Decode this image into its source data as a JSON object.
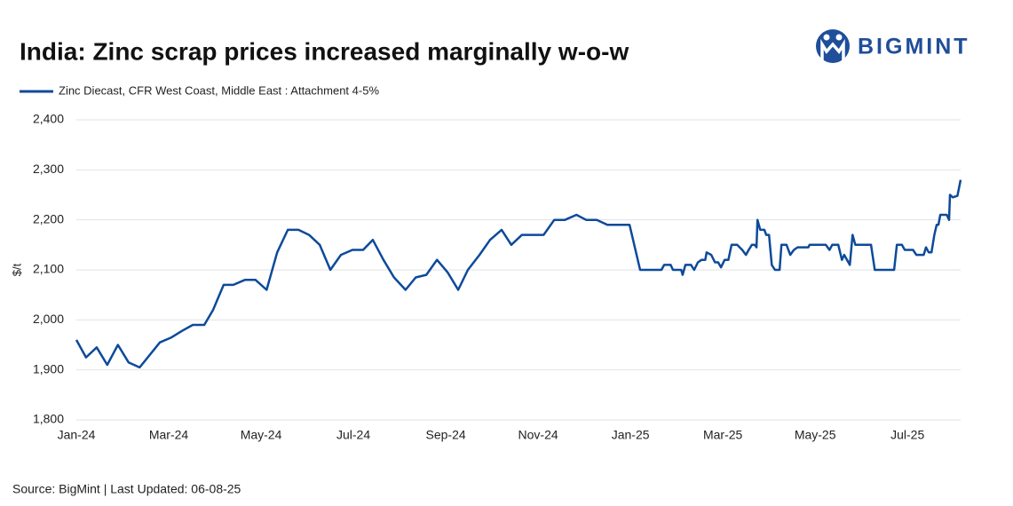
{
  "chart_data": {
    "type": "line",
    "title": "India: Zinc scrap prices increased marginally w-o-w",
    "logo": "BIGMINT",
    "source": "Source: BigMint | Last Updated: 06-08-25",
    "ylabel": "$/t",
    "grid": true,
    "legend": "top-left",
    "x": [
      0,
      0.21,
      0.44,
      0.67,
      0.9,
      1.13,
      1.37,
      1.81,
      2.06,
      2.29,
      2.52,
      2.77,
      2.96,
      3.19,
      3.4,
      3.65,
      3.88,
      4.12,
      4.35,
      4.58,
      4.81,
      5.04,
      5.27,
      5.5,
      5.73,
      5.98,
      6.21,
      6.42,
      6.65,
      6.88,
      7.13,
      7.35,
      7.58,
      7.81,
      8.04,
      8.27,
      8.48,
      8.73,
      8.96,
      9.21,
      9.42,
      9.65,
      10.12,
      10.35,
      10.58,
      10.83,
      11.04,
      11.27,
      11.5,
      11.98,
      12.21,
      12.67,
      12.73,
      12.87,
      12.92,
      13.1,
      13.13,
      13.19,
      13.31,
      13.38,
      13.46,
      13.54,
      13.62,
      13.65,
      13.75,
      13.83,
      13.9,
      13.96,
      14.04,
      14.12,
      14.19,
      14.31,
      14.42,
      14.5,
      14.56,
      14.63,
      14.69,
      14.73,
      14.75,
      14.81,
      14.9,
      14.94,
      15,
      15.06,
      15.13,
      15.23,
      15.27,
      15.38,
      15.46,
      15.54,
      15.62,
      15.85,
      15.88,
      16.23,
      16.31,
      16.37,
      16.5,
      16.58,
      16.63,
      16.75,
      16.81,
      16.87,
      17.21,
      17.29,
      17.71,
      17.77,
      17.88,
      17.94,
      18.12,
      18.19,
      18.35,
      18.4,
      18.46,
      18.52,
      18.58,
      18.63,
      18.67,
      18.71,
      18.85,
      18.9,
      18.92,
      18.98,
      19.08,
      19.15
    ],
    "series": [
      {
        "name": "Zinc Diecast, CFR West Coast, Middle East : Attachment 4-5%",
        "color": "#0d4a9a",
        "values": [
          1960,
          1925,
          1945,
          1910,
          1950,
          1915,
          1905,
          1955,
          1965,
          1978,
          1990,
          1990,
          2020,
          2070,
          2070,
          2080,
          2080,
          2060,
          2135,
          2180,
          2180,
          2170,
          2150,
          2100,
          2130,
          2140,
          2140,
          2160,
          2120,
          2085,
          2060,
          2085,
          2090,
          2120,
          2095,
          2060,
          2100,
          2130,
          2160,
          2180,
          2150,
          2170,
          2170,
          2200,
          2200,
          2210,
          2200,
          2200,
          2190,
          2190,
          2100,
          2100,
          2110,
          2110,
          2100,
          2100,
          2090,
          2110,
          2110,
          2100,
          2115,
          2120,
          2120,
          2135,
          2130,
          2115,
          2115,
          2105,
          2120,
          2120,
          2150,
          2150,
          2140,
          2130,
          2140,
          2150,
          2150,
          2145,
          2200,
          2180,
          2180,
          2170,
          2170,
          2110,
          2100,
          2100,
          2150,
          2150,
          2130,
          2140,
          2145,
          2145,
          2150,
          2150,
          2140,
          2150,
          2150,
          2120,
          2130,
          2110,
          2170,
          2150,
          2150,
          2100,
          2100,
          2150,
          2150,
          2140,
          2140,
          2130,
          2130,
          2145,
          2135,
          2135,
          2170,
          2190,
          2190,
          2210,
          2210,
          2200,
          2250,
          2245,
          2248,
          2280
        ]
      }
    ],
    "xlim": [
      0,
      19.15
    ],
    "xticks": [
      {
        "value": 0,
        "label": "Jan-24"
      },
      {
        "value": 2,
        "label": "Mar-24"
      },
      {
        "value": 4,
        "label": "May-24"
      },
      {
        "value": 6,
        "label": "Jul-24"
      },
      {
        "value": 8,
        "label": "Sep-24"
      },
      {
        "value": 10,
        "label": "Nov-24"
      },
      {
        "value": 12,
        "label": "Jan-25"
      },
      {
        "value": 14,
        "label": "Mar-25"
      },
      {
        "value": 16,
        "label": "May-25"
      },
      {
        "value": 18,
        "label": "Jul-25"
      }
    ],
    "ylim": [
      1800,
      2400
    ],
    "yticks": [
      {
        "value": 1800,
        "label": "1,800"
      },
      {
        "value": 1900,
        "label": "1,900"
      },
      {
        "value": 2000,
        "label": "2,000"
      },
      {
        "value": 2100,
        "label": "2,100"
      },
      {
        "value": 2200,
        "label": "2,200"
      },
      {
        "value": 2300,
        "label": "2,300"
      },
      {
        "value": 2400,
        "label": "2,400"
      }
    ]
  }
}
